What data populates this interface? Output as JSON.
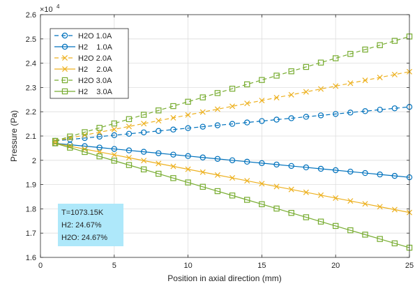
{
  "chart_data": {
    "type": "line",
    "title": "",
    "xlabel": "Position in axial direction (mm)",
    "ylabel": "Pressure (Pa)",
    "y_exponent_label": "×10",
    "y_exponent_power": "4",
    "xlim": [
      0,
      25
    ],
    "ylim": [
      1.6,
      2.6
    ],
    "xticks": [
      0,
      5,
      10,
      15,
      20,
      25
    ],
    "xtick_labels": [
      "0",
      "5",
      "10",
      "15",
      "20",
      "25"
    ],
    "yticks": [
      1.6,
      1.7,
      1.8,
      1.9,
      2.0,
      2.1,
      2.2,
      2.3,
      2.4,
      2.5,
      2.6
    ],
    "ytick_labels": [
      "1.6",
      "1.7",
      "1.8",
      "1.9",
      "2",
      "2.1",
      "2.2",
      "2.3",
      "2.4",
      "2.5",
      "2.6"
    ],
    "grid": true,
    "legend_position": "top-left",
    "x": [
      1,
      2,
      3,
      4,
      5,
      6,
      7,
      8,
      9,
      10,
      11,
      12,
      13,
      14,
      15,
      16,
      17,
      18,
      19,
      20,
      21,
      22,
      23,
      24,
      25
    ],
    "series": [
      {
        "name": "H2O 1.0A",
        "color": "#0072BD",
        "marker": "circle",
        "dashed": true,
        "start": 2.08,
        "end": 2.22
      },
      {
        "name": "H2    1.0A",
        "color": "#0072BD",
        "marker": "circle",
        "dashed": false,
        "start": 2.07,
        "end": 1.93
      },
      {
        "name": "H2O 2.0A",
        "color": "#EDB120",
        "marker": "x",
        "dashed": true,
        "start": 2.08,
        "end": 2.365
      },
      {
        "name": "H2    2.0A",
        "color": "#EDB120",
        "marker": "x",
        "dashed": false,
        "start": 2.07,
        "end": 1.785
      },
      {
        "name": "H2O 3.0A",
        "color": "#77AC30",
        "marker": "square",
        "dashed": true,
        "start": 2.08,
        "end": 2.51
      },
      {
        "name": "H2    3.0A",
        "color": "#77AC30",
        "marker": "square",
        "dashed": false,
        "start": 2.07,
        "end": 1.64
      }
    ],
    "annotation": {
      "lines": [
        "T=1073.15K",
        "H2: 24.67%",
        "H2O: 24.67%"
      ],
      "background": "#AEE8FA"
    }
  }
}
